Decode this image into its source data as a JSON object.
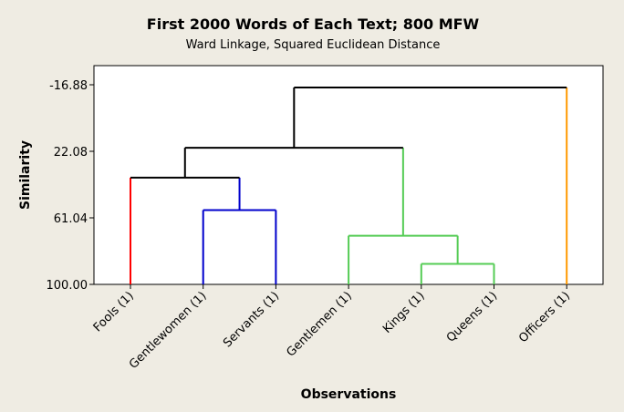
{
  "chart_data": {
    "type": "dendrogram",
    "title": "First 2000 Words of Each Text; 800 MFW",
    "subtitle": "Ward Linkage, Squared Euclidean Distance",
    "xlabel": "Observations",
    "ylabel": "Similarity",
    "ylim": [
      100.0,
      -16.88
    ],
    "yticks": [
      {
        "value": -16.88,
        "label": "-16.88"
      },
      {
        "value": 22.08,
        "label": "22.08"
      },
      {
        "value": 61.04,
        "label": "61.04"
      },
      {
        "value": 100.0,
        "label": "100.00"
      }
    ],
    "observations": [
      "Fools (1)",
      "Gentlewomen (1)",
      "Servants (1)",
      "Gentlemen (1)",
      "Kings (1)",
      "Queens (1)",
      "Officers (1)"
    ],
    "leaf_colors": [
      "#ff0000",
      "#0000cc",
      "#0000cc",
      "#55cc55",
      "#55cc55",
      "#55cc55",
      "#ff9900"
    ],
    "merges": [
      {
        "left": "leaf:1",
        "right": "leaf:2",
        "similarity": 56.5,
        "color": "#0000cc"
      },
      {
        "left": "leaf:4",
        "right": "leaf:5",
        "similarity": 88.0,
        "color": "#55cc55"
      },
      {
        "left": "leaf:3",
        "right": "node:1",
        "similarity": 71.5,
        "color": "#55cc55"
      },
      {
        "left": "leaf:0",
        "right": "node:0",
        "similarity": 37.5,
        "color": "#000000"
      },
      {
        "left": "node:3",
        "right": "node:2",
        "similarity": 20.0,
        "color": "#000000"
      },
      {
        "left": "node:4",
        "right": "leaf:6",
        "similarity": -15.3,
        "color": "#000000"
      }
    ],
    "grid": false
  }
}
